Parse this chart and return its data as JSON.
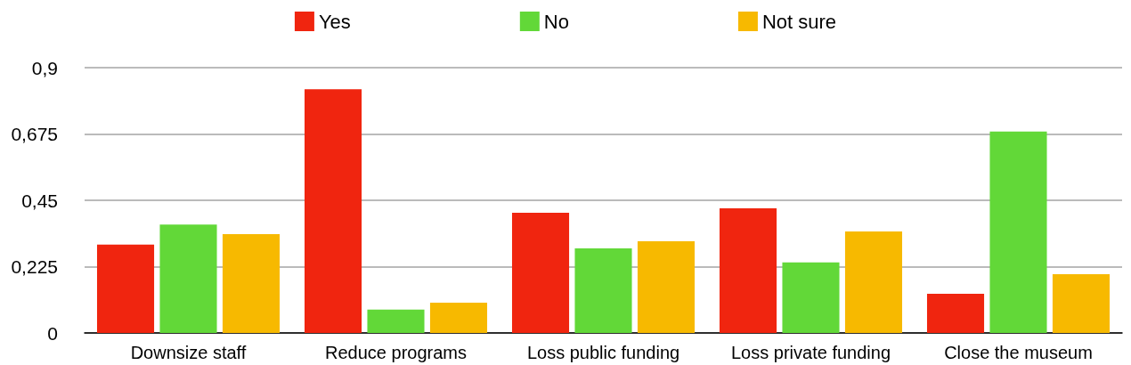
{
  "chart_data": {
    "type": "bar",
    "categories": [
      "Downsize staff",
      "Reduce programs",
      "Loss public funding",
      "Loss private funding",
      "Close the museum"
    ],
    "series": [
      {
        "name": "Yes",
        "color": "#f0250f",
        "values": [
          0.3,
          0.827,
          0.408,
          0.423,
          0.133
        ]
      },
      {
        "name": "No",
        "color": "#62d838",
        "values": [
          0.368,
          0.079,
          0.287,
          0.239,
          0.683
        ]
      },
      {
        "name": "Not sure",
        "color": "#f7b900",
        "values": [
          0.335,
          0.103,
          0.311,
          0.344,
          0.199
        ]
      }
    ],
    "ylim": [
      0,
      0.9
    ],
    "yticks": [
      0,
      {
        "value": 0.225,
        "label": "0,225"
      },
      {
        "value": 0.45,
        "label": "0,45"
      },
      {
        "value": 0.675,
        "label": "0,675"
      },
      {
        "value": 0.9,
        "label": "0,9"
      }
    ],
    "grid": "y",
    "legend": "top"
  }
}
